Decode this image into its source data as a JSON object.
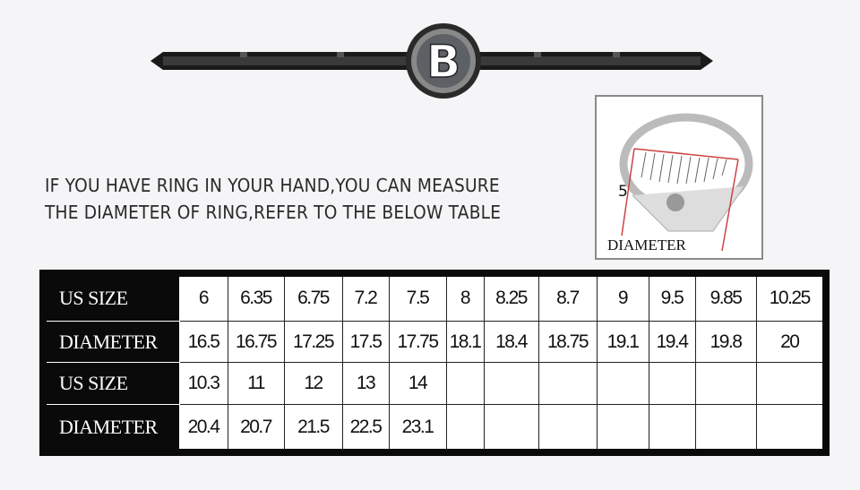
{
  "banner": {
    "letter": "B"
  },
  "intro": {
    "line1": "IF YOU HAVE RING IN YOUR HAND,YOU CAN  MEASURE",
    "line2": "THE DIAMETER OF RING,REFER TO THE BELOW TABLE"
  },
  "photo": {
    "label": "DIAMETER",
    "mark": "5"
  },
  "table": {
    "rows": [
      {
        "header": "US SIZE",
        "cells": [
          "6",
          "6.35",
          "6.75",
          "7.2",
          "7.5",
          "8",
          "8.25",
          "8.7",
          "9",
          "9.5",
          "9.85",
          "10.25"
        ]
      },
      {
        "header": "DIAMETER",
        "cells": [
          "16.5",
          "16.75",
          "17.25",
          "17.5",
          "17.75",
          "18.1",
          "18.4",
          "18.75",
          "19.1",
          "19.4",
          "19.8",
          "20"
        ]
      },
      {
        "header": "US SIZE",
        "cells": [
          "10.3",
          "11",
          "12",
          "13",
          "14",
          "",
          "",
          "",
          "",
          "",
          "",
          ""
        ]
      },
      {
        "header": "DIAMETER",
        "cells": [
          "20.4",
          "20.7",
          "21.5",
          "22.5",
          "23.1",
          "",
          "",
          "",
          "",
          "",
          "",
          ""
        ]
      }
    ]
  }
}
